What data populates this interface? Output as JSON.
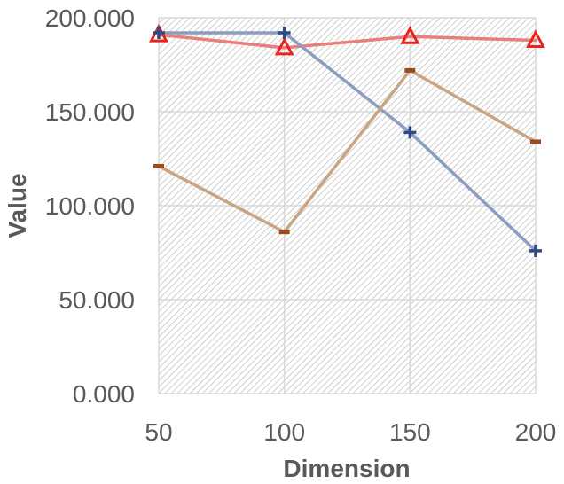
{
  "chart_data": {
    "type": "line",
    "title": "",
    "xlabel": "Dimension",
    "ylabel": "Value",
    "x": [
      50,
      100,
      150,
      200
    ],
    "x_tick_labels": [
      "50",
      "100",
      "150",
      "200"
    ],
    "ylim": [
      0,
      200
    ],
    "y_ticks": [
      0,
      50,
      100,
      150,
      200
    ],
    "y_tick_labels": [
      "0.000",
      "50.000",
      "100.000",
      "150.000",
      "200.000"
    ],
    "grid": true,
    "legend": "none",
    "series": [
      {
        "name": "series-red-triangle",
        "marker": "triangle",
        "color": "#e8807a",
        "marker_color": "#e8231e",
        "values": [
          191,
          184,
          190,
          188
        ]
      },
      {
        "name": "series-blue-plus",
        "marker": "plus",
        "color": "#8b9dc0",
        "marker_color": "#2e4a8a",
        "values": [
          192,
          192,
          139,
          76
        ]
      },
      {
        "name": "series-brown-dash",
        "marker": "dash",
        "color": "#c9a584",
        "marker_color": "#9e4a1f",
        "values": [
          121,
          86,
          172,
          134
        ]
      }
    ]
  }
}
